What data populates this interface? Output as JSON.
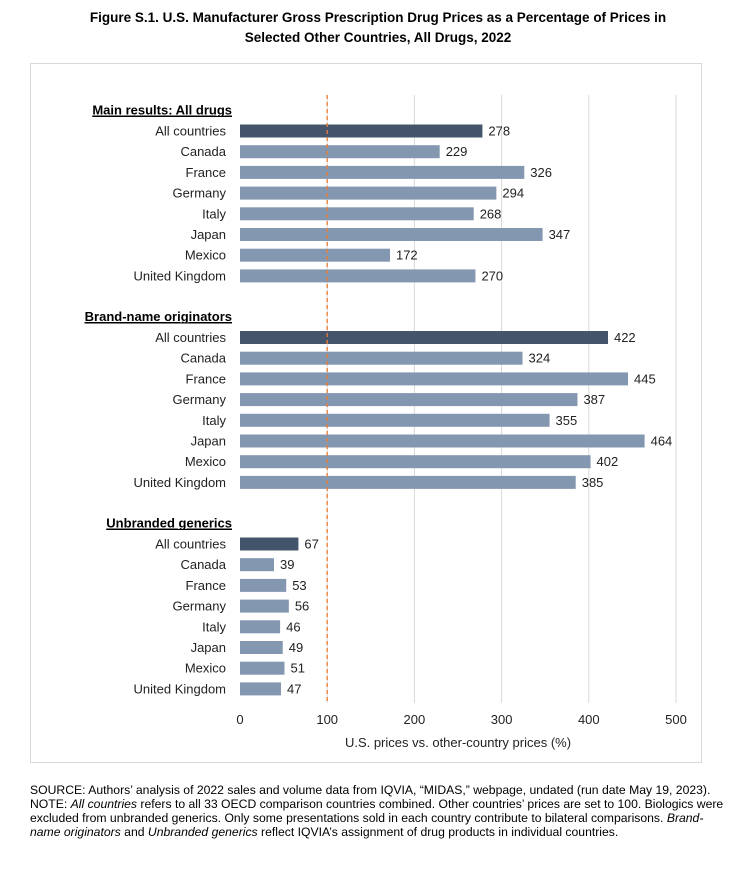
{
  "figure": {
    "title_line1": "Figure S.1. U.S. Manufacturer Gross Prescription Drug Prices as a Percentage of Prices in",
    "title_line2": "Selected Other Countries, All Drugs, 2022"
  },
  "chart_data": {
    "type": "bar",
    "orientation": "horizontal",
    "xlabel": "U.S. prices vs. other-country prices (%)",
    "xlim": [
      0,
      500
    ],
    "xticks": [
      0,
      100,
      200,
      300,
      400,
      500
    ],
    "reference_line": 100,
    "grid": true,
    "groups": [
      {
        "label": "Main results: All drugs",
        "categories": [
          "All countries",
          "Canada",
          "France",
          "Germany",
          "Italy",
          "Japan",
          "Mexico",
          "United Kingdom"
        ],
        "values": [
          278,
          229,
          326,
          294,
          268,
          347,
          172,
          270
        ]
      },
      {
        "label": "Brand-name originators",
        "categories": [
          "All countries",
          "Canada",
          "France",
          "Germany",
          "Italy",
          "Japan",
          "Mexico",
          "United Kingdom"
        ],
        "values": [
          422,
          324,
          445,
          387,
          355,
          464,
          402,
          385
        ]
      },
      {
        "label": "Unbranded generics",
        "categories": [
          "All countries",
          "Canada",
          "France",
          "Germany",
          "Italy",
          "Japan",
          "Mexico",
          "United Kingdom"
        ],
        "values": [
          67,
          39,
          53,
          56,
          46,
          49,
          51,
          47
        ]
      }
    ],
    "colors": {
      "all_countries_bar": "#44546a",
      "country_bar": "#8497b0",
      "reference_line": "#ed7d31",
      "grid": "#d9d9d9"
    }
  },
  "notes": {
    "source": "SOURCE: Authors’ analysis of 2022 sales and volume data from IQVIA, “MIDAS,” webpage, undated (run date May 19, 2023).",
    "note_prefix": "NOTE: ",
    "note_italic1": "All countries",
    "note_mid": " refers to all 33 OECD comparison countries combined. Other countries’ prices are set to 100. Biologics were excluded from unbranded generics. Only some presentations sold in each country contribute to bilateral comparisons. ",
    "note_italic2": "Brand-name originators",
    "note_and": " and ",
    "note_italic3": "Unbranded generics",
    "note_end": " reflect IQVIA’s assignment of drug products in individual countries."
  }
}
